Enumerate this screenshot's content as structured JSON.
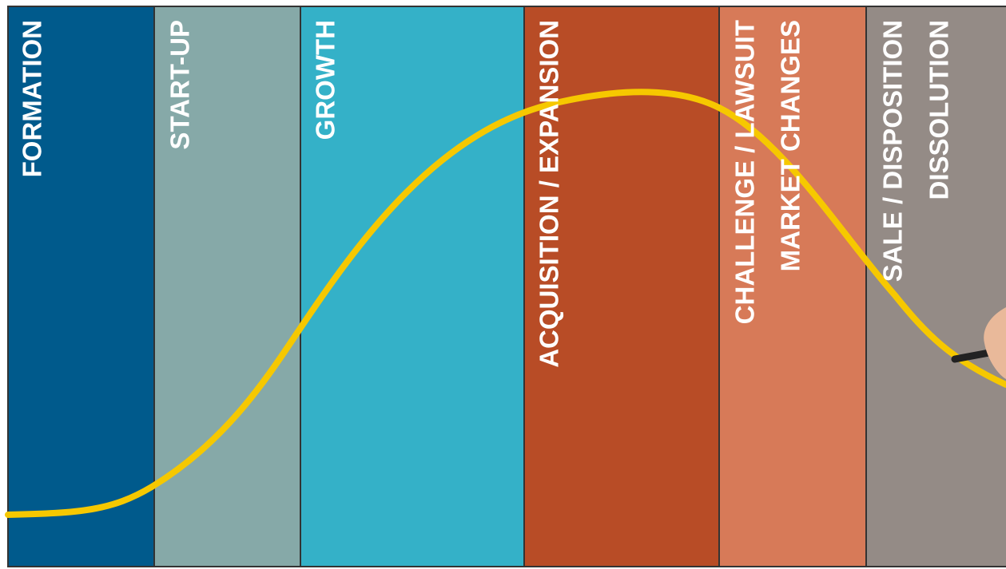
{
  "stages": [
    {
      "lines": [
        "FORMATION"
      ]
    },
    {
      "lines": [
        "START-UP"
      ]
    },
    {
      "lines": [
        "GROWTH"
      ]
    },
    {
      "lines": [
        "ACQUISITION / EXPANSION"
      ]
    },
    {
      "lines": [
        "CHALLENGE / LAWSUIT",
        "MARKET CHANGES"
      ]
    },
    {
      "lines": [
        "SALE / DISPOSITION",
        "DISSOLUTION"
      ]
    }
  ]
}
